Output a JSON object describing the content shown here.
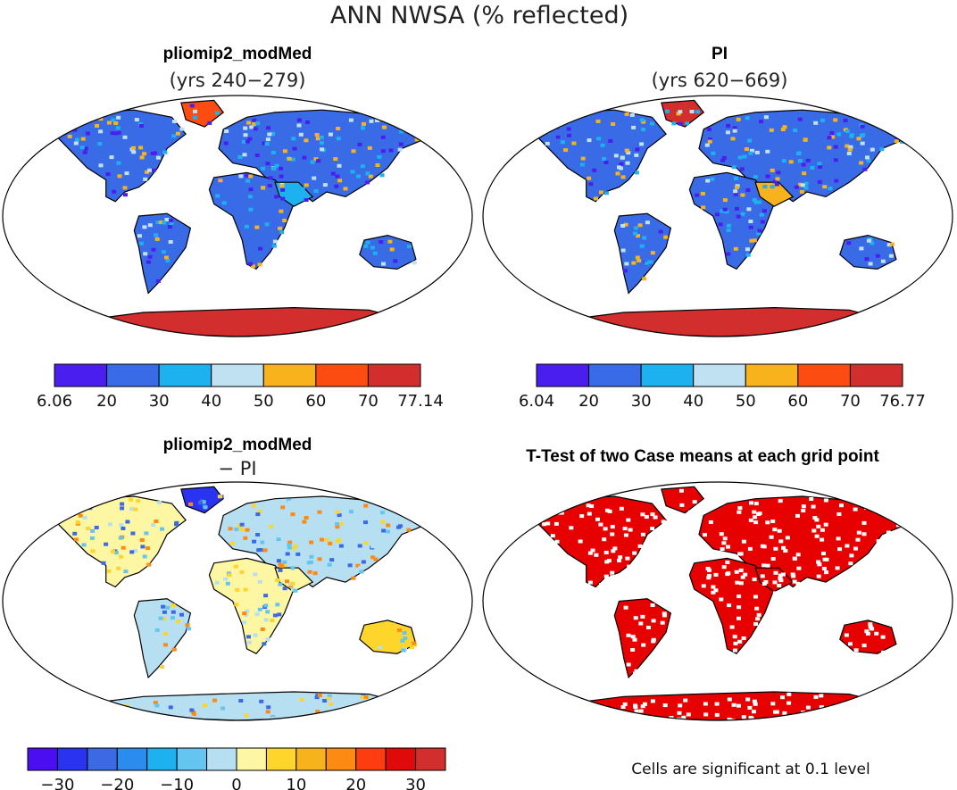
{
  "figure": {
    "title": "ANN NWSA (% reflected)",
    "note": "Cells are significant at 0.1 level"
  },
  "panels": [
    {
      "id": "p1",
      "title": "pliomip2_modMed",
      "subtitle": "(yrs 240−279)",
      "colorbar": {
        "colors": [
          "#4b1ef0",
          "#3a6be6",
          "#1eb1ef",
          "#bfe1f2",
          "#f8b21b",
          "#fd4c11",
          "#d22e2e"
        ],
        "labels": [
          "6.06",
          "20",
          "30",
          "40",
          "50",
          "60",
          "70",
          "77.14"
        ]
      }
    },
    {
      "id": "p2",
      "title": "PI",
      "subtitle": "(yrs 620−669)",
      "colorbar": {
        "colors": [
          "#4b1ef0",
          "#3a6be6",
          "#1eb1ef",
          "#bfe1f2",
          "#f8b21b",
          "#fd4c11",
          "#d22e2e"
        ],
        "labels": [
          "6.04",
          "20",
          "30",
          "40",
          "50",
          "60",
          "70",
          "76.77"
        ]
      }
    },
    {
      "id": "p3",
      "title": "pliomip2_modMed",
      "subtitle": "− PI",
      "colorbar": {
        "colors": [
          "#4b0ef0",
          "#2a34f0",
          "#3b6ae4",
          "#2b8cf0",
          "#1eb1ef",
          "#63c5f0",
          "#b6dff2",
          "#fdf6a3",
          "#fdd52b",
          "#f8b21b",
          "#fd8a12",
          "#fd3c0f",
          "#e00a0a",
          "#d22e2e"
        ],
        "labels": [
          "−30",
          "−20",
          "−10",
          "0",
          "10",
          "20",
          "30"
        ]
      }
    },
    {
      "id": "p4",
      "title": "T-Test of two Case means at each grid point"
    }
  ]
}
